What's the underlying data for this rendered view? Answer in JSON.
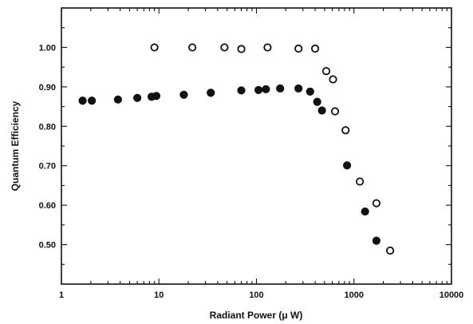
{
  "chart_data": {
    "type": "scatter",
    "title": "",
    "xlabel": "Radiant Power (μ W)",
    "ylabel": "Quantum Efficiency",
    "xscale": "log",
    "xlim": [
      1,
      10000
    ],
    "ylim": [
      0.4,
      1.1
    ],
    "grid": false,
    "x_ticks": [
      {
        "value": 1,
        "label": "1"
      },
      {
        "value": 10,
        "label": "10"
      },
      {
        "value": 100,
        "label": "100"
      },
      {
        "value": 1000,
        "label": "1000"
      },
      {
        "value": 10000,
        "label": "10000"
      }
    ],
    "y_ticks": [
      {
        "value": 0.5,
        "label": "0.50"
      },
      {
        "value": 0.6,
        "label": "0.60"
      },
      {
        "value": 0.7,
        "label": "0.70"
      },
      {
        "value": 0.8,
        "label": "0.80"
      },
      {
        "value": 0.9,
        "label": "0.90"
      },
      {
        "value": 1.0,
        "label": "1.00"
      }
    ],
    "series": [
      {
        "marker": "filled-circle",
        "color": "#111111",
        "x": [
          1.65,
          2.05,
          3.8,
          6.0,
          8.4,
          9.4,
          18,
          34,
          70,
          105,
          125,
          175,
          270,
          355,
          420,
          470,
          850,
          1300,
          1700
        ],
        "y": [
          0.865,
          0.865,
          0.868,
          0.872,
          0.875,
          0.877,
          0.88,
          0.885,
          0.891,
          0.892,
          0.894,
          0.896,
          0.896,
          0.888,
          0.862,
          0.84,
          0.701,
          0.584,
          0.51
        ]
      },
      {
        "marker": "open-circle",
        "color": "#111111",
        "x": [
          9.0,
          22,
          47,
          70,
          130,
          270,
          400,
          520,
          610,
          640,
          820,
          1150,
          1700,
          2350
        ],
        "y": [
          1.0,
          1.0,
          1.0,
          0.996,
          1.0,
          0.997,
          0.997,
          0.94,
          0.919,
          0.838,
          0.79,
          0.66,
          0.605,
          0.485
        ]
      }
    ]
  }
}
